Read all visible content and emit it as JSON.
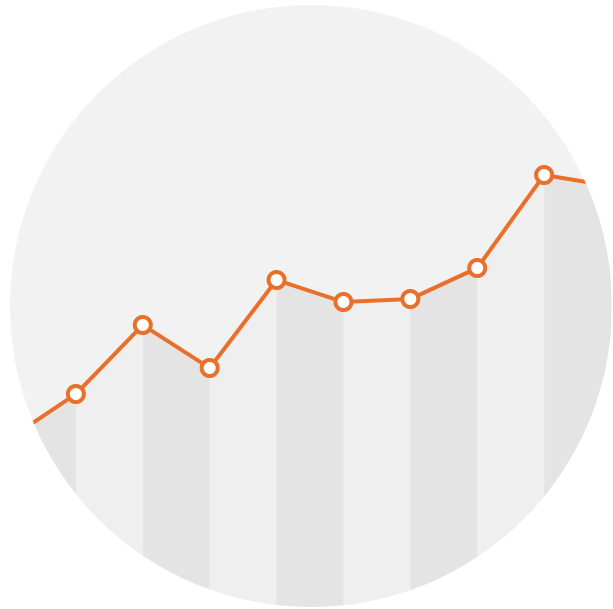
{
  "chart_data": {
    "type": "line",
    "x": [
      0,
      1,
      2,
      3,
      4,
      5,
      6,
      7,
      8,
      9
    ],
    "series": [
      {
        "color": "#e8702a",
        "values": [
          170,
          215,
          284,
          241,
          329,
          307,
          310,
          341,
          434,
          423
        ]
      }
    ],
    "xlim": [
      0,
      9
    ],
    "ylim": [
      0,
      609
    ],
    "background": "#f2f2f2",
    "band_colors": [
      "#e4e4e4",
      "#efefef"
    ],
    "marker_fill": "#ffffff"
  }
}
